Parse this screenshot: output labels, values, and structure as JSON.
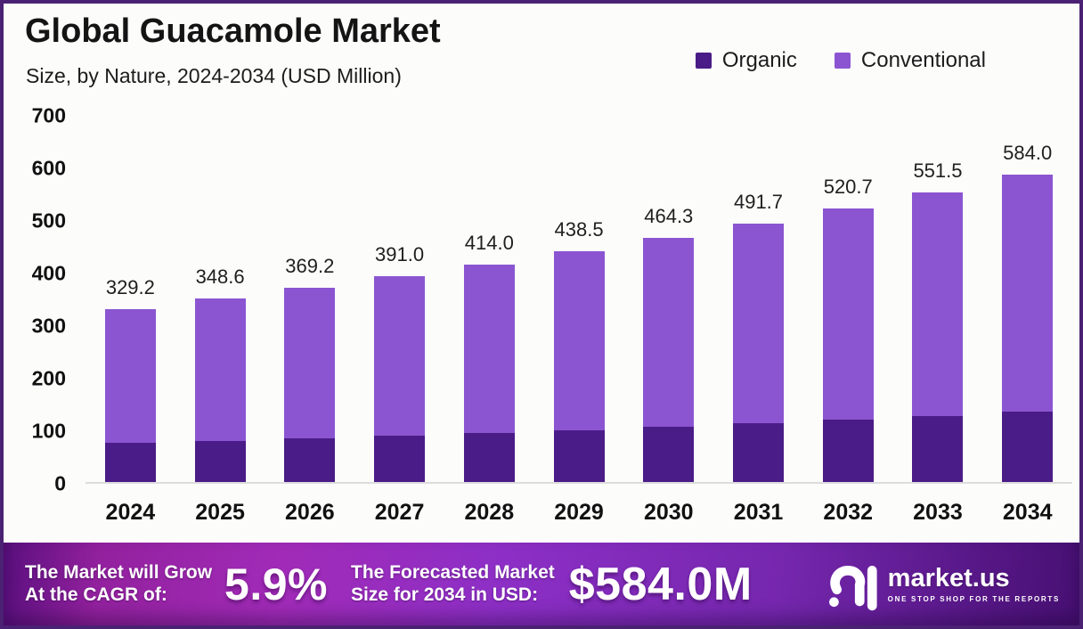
{
  "header": {
    "title": "Global Guacamole Market",
    "subtitle": "Size, by Nature, 2024-2034 (USD Million)"
  },
  "legend": [
    {
      "label": "Organic",
      "color": "#4A1C87"
    },
    {
      "label": "Conventional",
      "color": "#8B55D1"
    }
  ],
  "colors": {
    "organic": "#4A1C87",
    "conventional": "#8B55D1",
    "frame_border": "#4A2173",
    "banner_gradient_left": "#93219E",
    "banner_gradient_mid": "#8D2FC6",
    "banner_gradient_right": "#541683"
  },
  "chart_data": {
    "type": "bar",
    "stacked": true,
    "title": "Global Guacamole Market",
    "subtitle": "Size, by Nature, 2024-2034 (USD Million)",
    "xlabel": "",
    "ylabel": "",
    "ylim": [
      0,
      700
    ],
    "grid": false,
    "legend_position": "top-right",
    "categories": [
      "2024",
      "2025",
      "2026",
      "2027",
      "2028",
      "2029",
      "2030",
      "2031",
      "2032",
      "2033",
      "2034"
    ],
    "totals": [
      329.2,
      348.6,
      369.2,
      391.0,
      414.0,
      438.5,
      464.3,
      491.7,
      520.7,
      551.5,
      584.0
    ],
    "bar_labels": [
      "329.2",
      "348.6",
      "369.2",
      "391.0",
      "414.0",
      "438.5",
      "464.3",
      "491.7",
      "520.7",
      "551.5",
      "584.0"
    ],
    "series": [
      {
        "name": "Organic",
        "color": "#4A1C87",
        "values": [
          74.0,
          78.5,
          83.0,
          88.0,
          93.5,
          99.0,
          105.0,
          111.5,
          118.0,
          126.0,
          133.5
        ]
      },
      {
        "name": "Conventional",
        "color": "#8B55D1",
        "values": [
          255.2,
          270.1,
          286.2,
          303.0,
          320.5,
          339.5,
          359.3,
          380.2,
          402.7,
          425.5,
          450.5
        ]
      }
    ],
    "y_ticks": [
      "700",
      "600",
      "500",
      "400",
      "300",
      "200",
      "100",
      "0"
    ]
  },
  "footer": {
    "cagr_label_line1": "The Market will Grow",
    "cagr_label_line2": "At the CAGR of:",
    "cagr_value": "5.9%",
    "forecast_label_line1": "The Forecasted Market",
    "forecast_label_line2": "Size for 2034 in USD:",
    "forecast_value": "$584.0M",
    "brand": {
      "name": "market.us",
      "tagline": "ONE STOP SHOP FOR THE REPORTS"
    }
  }
}
